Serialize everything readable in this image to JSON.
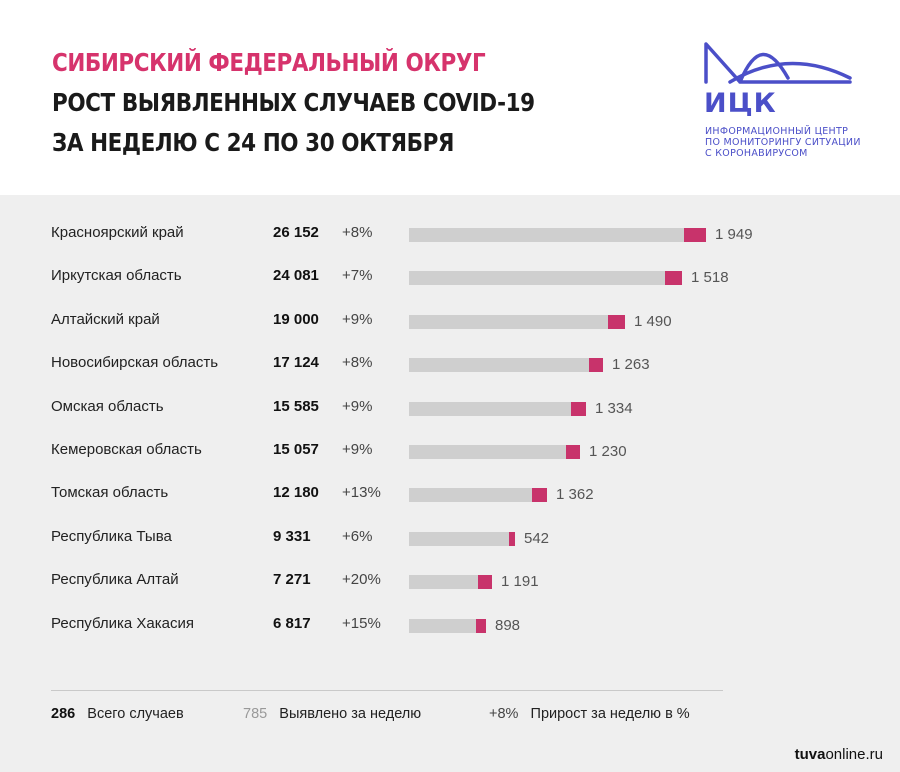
{
  "header": {
    "line1": "СИБИРСКИЙ ФЕДЕРАЛЬНЫЙ ОКРУГ",
    "line2": "РОСТ ВЫЯВЛЕННЫХ СЛУЧАЕВ COVID-19",
    "line3": "ЗА НЕДЕЛЮ С 24 ПО 30 ОКТЯБРЯ"
  },
  "logo": {
    "abbr": "ИЦК",
    "sub1": "ИНФОРМАЦИОННЫЙ ЦЕНТР",
    "sub2": "ПО МОНИТОРИНГУ СИТУАЦИИ",
    "sub3": "С КОРОНАВИРУСОМ",
    "color": "#4b4fc8"
  },
  "colors": {
    "title_accent": "#d6336c",
    "bar_total": "#cfcfcf",
    "bar_weekly": "#c8336b",
    "panel_bg": "#efefef"
  },
  "chart_data": {
    "type": "bar",
    "orientation": "horizontal",
    "categories": [
      "Красноярский край",
      "Иркутская область",
      "Алтайский край",
      "Новосибирская область",
      "Омская область",
      "Кемеровская область",
      "Томская область",
      "Республика Тыва",
      "Республика Алтай",
      "Республика Хакасия"
    ],
    "series": [
      {
        "name": "Всего случаев",
        "values": [
          26152,
          24081,
          19000,
          17124,
          15585,
          15057,
          12180,
          9331,
          7271,
          6817
        ]
      },
      {
        "name": "Выявлено за неделю",
        "values": [
          1949,
          1518,
          1490,
          1263,
          1334,
          1230,
          1362,
          542,
          1191,
          898
        ]
      },
      {
        "name": "Прирост за неделю в %",
        "values": [
          8,
          7,
          9,
          8,
          9,
          9,
          13,
          6,
          20,
          15
        ]
      }
    ],
    "labels": {
      "totals": [
        "26 152",
        "24 081",
        "19 000",
        "17 124",
        "15 585",
        "15 057",
        "12 180",
        "9 331",
        "7 271",
        "6 817"
      ],
      "weekly": [
        "1 949",
        "1 518",
        "1 490",
        "1 263",
        "1 334",
        "1 230",
        "1 362",
        "542",
        "1 191",
        "898"
      ],
      "growth": [
        "+8%",
        "+7%",
        "+9%",
        "+8%",
        "+9%",
        "+9%",
        "+13%",
        "+6%",
        "+20%",
        "+15%"
      ]
    },
    "xlim": [
      0,
      26152
    ],
    "grid": false,
    "legend": "bottom"
  },
  "legend": {
    "total_sample": "286",
    "total_label": "Всего случаев",
    "weekly_sample": "785",
    "weekly_label": "Выявлено за неделю",
    "growth_sample": "+8%",
    "growth_label": "Прирост за неделю в %"
  },
  "watermark": {
    "bold": "tuva",
    "rest": "online.ru"
  }
}
